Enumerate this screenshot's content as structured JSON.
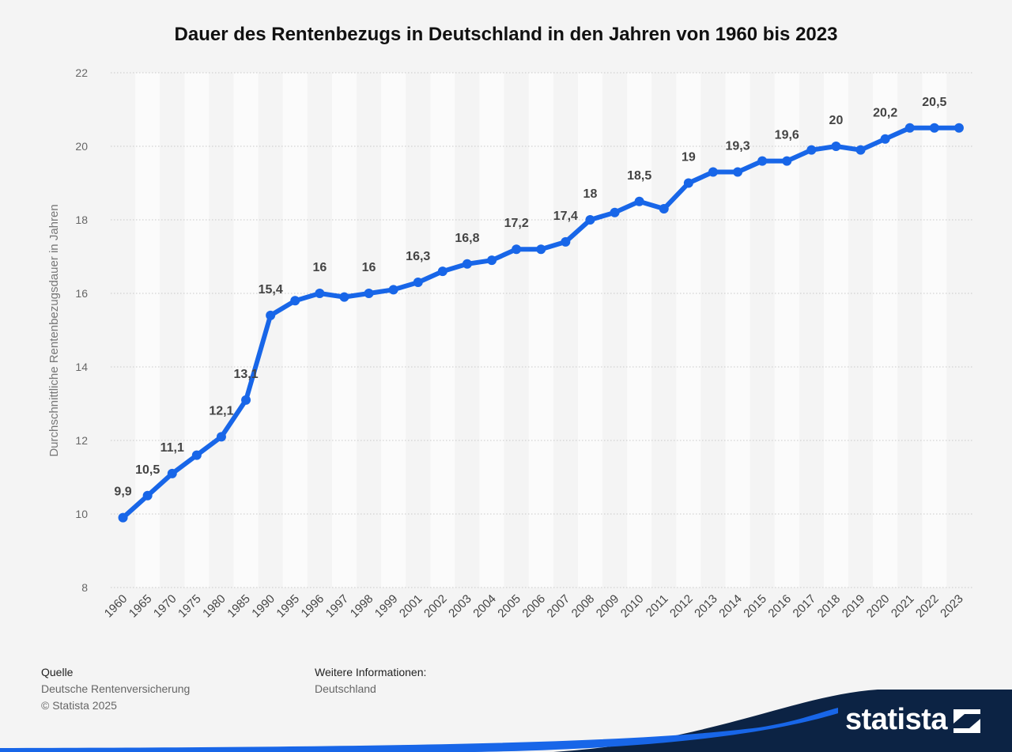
{
  "chart_data": {
    "type": "line",
    "title": "Dauer des Rentenbezugs in Deutschland in den Jahren von 1960 bis 2023",
    "xlabel": "",
    "ylabel": "Durchschnittliche Rentenbezugsdauer in Jahren",
    "ylim": [
      8,
      22
    ],
    "yticks": [
      8,
      10,
      12,
      14,
      16,
      18,
      20,
      22
    ],
    "grid": true,
    "categories": [
      "1960",
      "1965",
      "1970",
      "1975",
      "1980",
      "1985",
      "1990",
      "1995",
      "1996",
      "1997",
      "1998",
      "1999",
      "2001",
      "2002",
      "2003",
      "2004",
      "2005",
      "2006",
      "2007",
      "2008",
      "2009",
      "2010",
      "2011",
      "2012",
      "2013",
      "2014",
      "2015",
      "2016",
      "2017",
      "2018",
      "2019",
      "2020",
      "2021",
      "2022",
      "2023"
    ],
    "series": [
      {
        "name": "Rentenbezugsdauer",
        "color": "#1866e8",
        "values": [
          9.9,
          10.5,
          11.1,
          11.6,
          12.1,
          13.1,
          15.4,
          15.8,
          16,
          15.9,
          16,
          16.1,
          16.3,
          16.6,
          16.8,
          16.9,
          17.2,
          17.2,
          17.4,
          18,
          18.2,
          18.5,
          18.3,
          19,
          19.3,
          19.3,
          19.6,
          19.6,
          19.9,
          20,
          19.9,
          20.2,
          20.5,
          20.5,
          20.5
        ]
      }
    ],
    "data_labels": [
      {
        "index": 0,
        "text": "9,9"
      },
      {
        "index": 1,
        "text": "10,5"
      },
      {
        "index": 2,
        "text": "11,1"
      },
      {
        "index": 4,
        "text": "12,1"
      },
      {
        "index": 5,
        "text": "13,1"
      },
      {
        "index": 6,
        "text": "15,4"
      },
      {
        "index": 8,
        "text": "16"
      },
      {
        "index": 10,
        "text": "16"
      },
      {
        "index": 12,
        "text": "16,3"
      },
      {
        "index": 14,
        "text": "16,8"
      },
      {
        "index": 16,
        "text": "17,2"
      },
      {
        "index": 18,
        "text": "17,4"
      },
      {
        "index": 19,
        "text": "18"
      },
      {
        "index": 21,
        "text": "18,5"
      },
      {
        "index": 23,
        "text": "19"
      },
      {
        "index": 25,
        "text": "19,3"
      },
      {
        "index": 27,
        "text": "19,6"
      },
      {
        "index": 29,
        "text": "20"
      },
      {
        "index": 31,
        "text": "20,2"
      },
      {
        "index": 33,
        "text": "20,5"
      }
    ]
  },
  "footer": {
    "source_heading": "Quelle",
    "source_text": "Deutsche Rentenversicherung",
    "copyright": "© Statista 2025",
    "info_heading": "Weitere Informationen:",
    "info_text": "Deutschland"
  },
  "brand": {
    "name": "statista",
    "colors": {
      "navy": "#0c2344",
      "accent": "#1866e8"
    }
  }
}
